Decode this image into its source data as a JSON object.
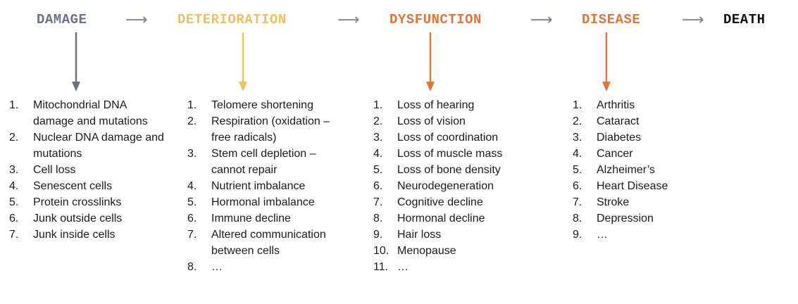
{
  "stages": [
    {
      "label": "DAMAGE",
      "color": "#6b7280"
    },
    {
      "label": "DETERIORATION",
      "color": "#eec064"
    },
    {
      "label": "DYSFUNCTION",
      "color": "#e2733a"
    },
    {
      "label": "DISEASE",
      "color": "#e2733a"
    },
    {
      "label": "DEATH",
      "color": "#111111"
    }
  ],
  "arrow_glyph": "⟶",
  "lists": {
    "damage": [
      {
        "num": "1.",
        "text": "Mitochondrial DNA damage and mutations"
      },
      {
        "num": "2.",
        "text": "Nuclear DNA damage and mutations"
      },
      {
        "num": "3.",
        "text": "Cell loss"
      },
      {
        "num": "4.",
        "text": "Senescent cells"
      },
      {
        "num": "5.",
        "text": "Protein crosslinks"
      },
      {
        "num": "6.",
        "text": "Junk outside cells"
      },
      {
        "num": "7.",
        "text": "Junk inside cells"
      }
    ],
    "deterioration": [
      {
        "num": "1.",
        "text": "Telomere shortening"
      },
      {
        "num": "2.",
        "text": "Respiration (oxidation – free radicals)"
      },
      {
        "num": "3.",
        "text": "Stem cell depletion – cannot repair"
      },
      {
        "num": "4.",
        "text": "Nutrient imbalance"
      },
      {
        "num": "5.",
        "text": "Hormonal imbalance"
      },
      {
        "num": "6.",
        "text": "Immune decline"
      },
      {
        "num": "7.",
        "text": "Altered communication between cells"
      },
      {
        "num": "8.",
        "text": "…"
      }
    ],
    "dysfunction": [
      {
        "num": "1.",
        "text": "Loss of hearing"
      },
      {
        "num": "2.",
        "text": "Loss of vision"
      },
      {
        "num": "3.",
        "text": "Loss of coordination"
      },
      {
        "num": "4.",
        "text": "Loss of muscle mass"
      },
      {
        "num": "5.",
        "text": "Loss of bone density"
      },
      {
        "num": "6.",
        "text": "Neurodegeneration"
      },
      {
        "num": "7.",
        "text": "Cognitive decline"
      },
      {
        "num": "8.",
        "text": "Hormonal decline"
      },
      {
        "num": "9.",
        "text": "Hair loss"
      },
      {
        "num": "10.",
        "text": "Menopause"
      },
      {
        "num": "11.",
        "text": "…"
      }
    ],
    "disease": [
      {
        "num": "1.",
        "text": "Arthritis"
      },
      {
        "num": "2.",
        "text": "Cataract"
      },
      {
        "num": "3.",
        "text": "Diabetes"
      },
      {
        "num": "4.",
        "text": "Cancer"
      },
      {
        "num": "5.",
        "text": "Alzheimer’s"
      },
      {
        "num": "6.",
        "text": "Heart Disease"
      },
      {
        "num": "7.",
        "text": "Stroke"
      },
      {
        "num": "8.",
        "text": "Depression"
      },
      {
        "num": "9.",
        "text": "…"
      }
    ]
  }
}
